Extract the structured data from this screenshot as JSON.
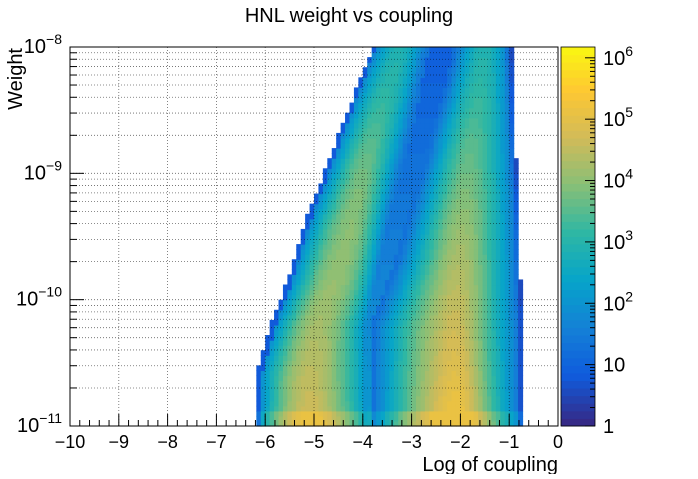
{
  "chart_data": {
    "type": "heatmap",
    "title": "HNL weight vs coupling",
    "xlabel": "Log of coupling",
    "ylabel": "Weight",
    "x_range": [
      -10,
      0
    ],
    "x_ticks": [
      "−10",
      "−9",
      "−8",
      "−7",
      "−6",
      "−5",
      "−4",
      "−3",
      "−2",
      "−1",
      "0"
    ],
    "x_tick_values": [
      -10,
      -9,
      -8,
      -7,
      -6,
      -5,
      -4,
      -3,
      -2,
      -1,
      0
    ],
    "y_scale": "log",
    "y_range": [
      1e-11,
      1e-08
    ],
    "y_tick_values": [
      1e-11,
      1e-10,
      1e-09,
      1e-08
    ],
    "y_tick_bases": [
      "10",
      "10",
      "10",
      "10"
    ],
    "y_tick_exponents": [
      "−11",
      "−10",
      "−9",
      "−8"
    ],
    "z_scale": "log",
    "z_range": [
      1,
      1500000
    ],
    "z_tick_values": [
      1,
      10,
      100,
      1000,
      10000,
      100000,
      1000000
    ],
    "z_tick_bases": [
      "1",
      "10",
      "10",
      "10",
      "10",
      "10",
      "10"
    ],
    "z_tick_exponents": [
      "",
      "",
      "2",
      "3",
      "4",
      "5",
      "6"
    ],
    "grid": true,
    "palette": [
      "#352a87",
      "#0f5cdd",
      "#1481d6",
      "#06a4ca",
      "#2eb7a4",
      "#87bf77",
      "#d1bb59",
      "#fec832",
      "#f9fb0e"
    ],
    "density_description_components": {
      "band1": {
        "left_edge_log10w_minus": 1,
        "note": "main populated band"
      },
      "band2": {
        "note": "secondary diagonal band"
      }
    },
    "structure": {
      "x_min_populated": -6.2,
      "x_max_populated": -0.7,
      "main_band_left_edge": [
        [
          -6.2,
          -11
        ],
        [
          -6.2,
          -10.6
        ],
        [
          -5.9,
          -10.2
        ],
        [
          -5.5,
          -9.8
        ],
        [
          -5.2,
          -9.4
        ],
        [
          -4.8,
          -9.0
        ],
        [
          -4.4,
          -8.6
        ],
        [
          -4.0,
          -8.2
        ],
        [
          -3.8,
          -8.0
        ]
      ],
      "inner_band_left_edge": [
        [
          -3.8,
          -10.2
        ],
        [
          -3.3,
          -9.7
        ],
        [
          -3.0,
          -9.3
        ],
        [
          -2.7,
          -8.9
        ],
        [
          -2.4,
          -8.5
        ],
        [
          -2.2,
          -8.2
        ],
        [
          -2.1,
          -8.0
        ]
      ],
      "main_band_right_edge": [
        [
          -3.95,
          -10.2
        ],
        [
          -3.6,
          -9.6
        ],
        [
          -3.25,
          -9.0
        ],
        [
          -3.0,
          -8.6
        ],
        [
          -2.8,
          -8.2
        ],
        [
          -2.7,
          -8.0
        ]
      ],
      "right_edge": [
        [
          -0.75,
          -11
        ],
        [
          -0.75,
          -10.2
        ],
        [
          -0.8,
          -9.4
        ],
        [
          -0.9,
          -8.6
        ],
        [
          -0.95,
          -8.0
        ]
      ],
      "peak_regions": [
        [
          -4.0,
          -10.9
        ],
        [
          -2.0,
          -10.8
        ]
      ]
    }
  }
}
